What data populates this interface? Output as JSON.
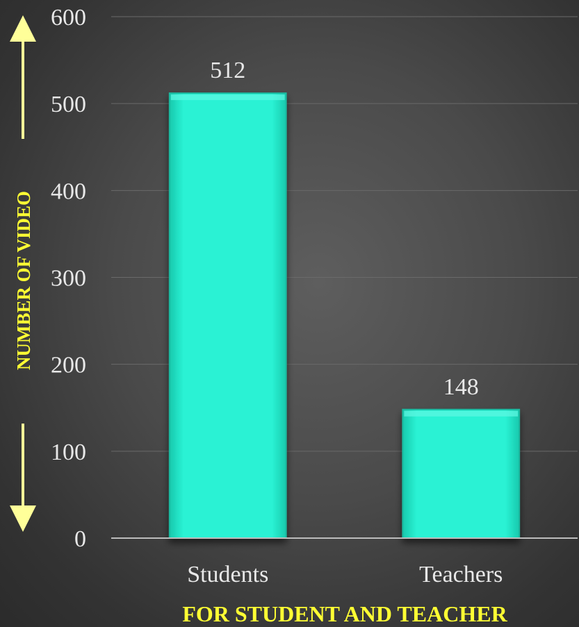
{
  "chart_data": {
    "type": "bar",
    "categories": [
      "Students",
      "Teachers"
    ],
    "values": [
      512,
      148
    ],
    "data_labels": [
      "512",
      "148"
    ],
    "title": "",
    "xlabel": "FOR STUDENT AND TEACHER",
    "ylabel": "NUMBER OF VIDEO",
    "ylim": [
      0,
      600
    ],
    "yticks": [
      0,
      100,
      200,
      300,
      400,
      500,
      600
    ],
    "grid": true,
    "legend": "none",
    "colors": {
      "bar": "#2af2d4",
      "bar_edge": "#1ab89f",
      "axis_title": "#ffff33",
      "tick": "#e8e8e8",
      "grid": "#6a6a6a",
      "arrow": "#ffff99"
    }
  }
}
